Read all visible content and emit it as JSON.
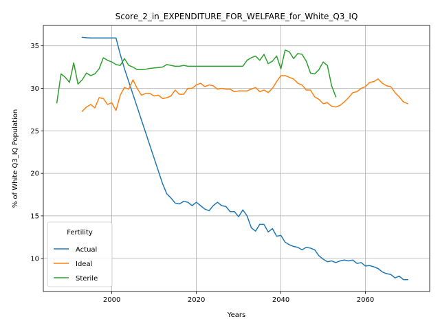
{
  "chart_data": {
    "type": "line",
    "title": "Score_2_in_EXPENDITURE_FOR_WELFARE_for_White_Q3_IQ",
    "xlabel": "Years",
    "ylabel": "% of White Q3_IQ Population",
    "xlim": [
      1983.8,
      2075.2
    ],
    "ylim": [
      6.1,
      37.4
    ],
    "xticks": [
      2000,
      2020,
      2040,
      2060
    ],
    "yticks": [
      10,
      15,
      20,
      25,
      30,
      35
    ],
    "grid": true,
    "legend": {
      "title": "Fertility",
      "placement": "lower-left"
    },
    "series": [
      {
        "name": "Actual",
        "color": "#1f77b4",
        "x": [
          1993,
          1994,
          1995,
          1996,
          1997,
          1998,
          1999,
          2000,
          2001,
          2002,
          2003,
          2004,
          2005,
          2006,
          2007,
          2008,
          2009,
          2010,
          2011,
          2012,
          2013,
          2014,
          2015,
          2016,
          2017,
          2018,
          2019,
          2020,
          2021,
          2022,
          2023,
          2024,
          2025,
          2026,
          2027,
          2028,
          2029,
          2030,
          2031,
          2032,
          2033,
          2034,
          2035,
          2036,
          2037,
          2038,
          2039,
          2040,
          2041,
          2042,
          2043,
          2044,
          2045,
          2046,
          2047,
          2048,
          2049,
          2050,
          2051,
          2052,
          2053,
          2054,
          2055,
          2056,
          2057,
          2058,
          2059,
          2060,
          2061,
          2062,
          2063,
          2064,
          2065,
          2066,
          2067,
          2068,
          2069,
          2070
        ],
        "y": [
          36.0,
          35.95,
          35.92,
          35.92,
          35.92,
          35.92,
          35.92,
          35.92,
          35.92,
          34.0,
          32.3,
          30.8,
          29.3,
          27.8,
          26.3,
          24.8,
          23.3,
          21.8,
          20.3,
          18.8,
          17.6,
          17.1,
          16.5,
          16.4,
          16.7,
          16.6,
          16.2,
          16.6,
          16.2,
          15.8,
          15.6,
          16.2,
          16.6,
          16.2,
          16.1,
          15.5,
          15.5,
          14.9,
          15.7,
          15.0,
          13.6,
          13.2,
          14.0,
          14.0,
          13.1,
          13.5,
          12.6,
          12.7,
          11.9,
          11.6,
          11.4,
          11.3,
          11.0,
          11.3,
          11.2,
          11.0,
          10.3,
          9.9,
          9.6,
          9.7,
          9.5,
          9.7,
          9.8,
          9.7,
          9.8,
          9.4,
          9.5,
          9.1,
          9.15,
          9.0,
          8.8,
          8.4,
          8.2,
          8.1,
          7.7,
          7.9,
          7.5,
          7.5
        ]
      },
      {
        "name": "Ideal",
        "color": "#ff7f0e",
        "x": [
          1993,
          1994,
          1995,
          1996,
          1997,
          1998,
          1999,
          2000,
          2001,
          2002,
          2003,
          2004,
          2005,
          2006,
          2007,
          2008,
          2009,
          2010,
          2011,
          2012,
          2013,
          2014,
          2015,
          2016,
          2017,
          2018,
          2019,
          2020,
          2021,
          2022,
          2023,
          2024,
          2025,
          2026,
          2027,
          2028,
          2029,
          2030,
          2031,
          2032,
          2033,
          2034,
          2035,
          2036,
          2037,
          2038,
          2039,
          2040,
          2041,
          2042,
          2043,
          2044,
          2045,
          2046,
          2047,
          2048,
          2049,
          2050,
          2051,
          2052,
          2053,
          2054,
          2055,
          2056,
          2057,
          2058,
          2059,
          2060,
          2061,
          2062,
          2063,
          2064,
          2065,
          2066,
          2067,
          2068,
          2069,
          2070
        ],
        "y": [
          27.3,
          27.8,
          28.1,
          27.7,
          28.9,
          28.8,
          28.1,
          28.3,
          27.4,
          29.2,
          30.1,
          29.9,
          31.0,
          30.0,
          29.2,
          29.4,
          29.4,
          29.1,
          29.2,
          28.8,
          28.9,
          29.1,
          29.8,
          29.3,
          29.3,
          30.0,
          30.0,
          30.4,
          30.6,
          30.2,
          30.4,
          30.3,
          29.9,
          30.0,
          29.9,
          29.9,
          29.6,
          29.7,
          29.7,
          29.7,
          29.9,
          30.1,
          29.6,
          29.8,
          29.5,
          30.0,
          30.8,
          31.5,
          31.5,
          31.3,
          31.1,
          30.6,
          30.4,
          29.8,
          29.8,
          29.0,
          28.7,
          28.2,
          28.3,
          27.9,
          27.8,
          28.0,
          28.4,
          28.9,
          29.5,
          29.6,
          30.0,
          30.2,
          30.7,
          30.8,
          31.1,
          30.6,
          30.3,
          30.2,
          29.5,
          29.0,
          28.4,
          28.2
        ]
      },
      {
        "name": "Sterile",
        "color": "#2ca02c",
        "x": [
          1987,
          1988,
          1989,
          1990,
          1991,
          1992,
          1993,
          1994,
          1995,
          1996,
          1997,
          1998,
          1999,
          2000,
          2001,
          2002,
          2003,
          2004,
          2005,
          2006,
          2007,
          2008,
          2009,
          2010,
          2011,
          2012,
          2013,
          2014,
          2015,
          2016,
          2017,
          2018,
          2019,
          2020,
          2021,
          2022,
          2023,
          2024,
          2025,
          2026,
          2027,
          2028,
          2029,
          2030,
          2031,
          2032,
          2033,
          2034,
          2035,
          2036,
          2037,
          2038,
          2039,
          2040,
          2041,
          2042,
          2043,
          2044,
          2045,
          2046,
          2047,
          2048,
          2049,
          2050,
          2051,
          2052,
          2053
        ],
        "y": [
          28.3,
          31.7,
          31.3,
          30.7,
          33.0,
          30.5,
          31.0,
          31.8,
          31.5,
          31.7,
          32.3,
          33.6,
          33.3,
          33.1,
          32.8,
          32.7,
          33.5,
          32.7,
          32.5,
          32.2,
          32.2,
          32.25,
          32.35,
          32.4,
          32.45,
          32.5,
          32.8,
          32.7,
          32.6,
          32.6,
          32.7,
          32.6,
          32.6,
          32.6,
          32.6,
          32.6,
          32.6,
          32.6,
          32.6,
          32.6,
          32.6,
          32.6,
          32.6,
          32.6,
          32.6,
          33.3,
          33.6,
          33.8,
          33.3,
          34.0,
          32.9,
          33.2,
          33.8,
          32.3,
          34.5,
          34.3,
          33.5,
          34.1,
          34.0,
          33.2,
          31.8,
          31.7,
          32.2,
          33.1,
          32.7,
          30.3,
          29.0
        ]
      }
    ]
  }
}
